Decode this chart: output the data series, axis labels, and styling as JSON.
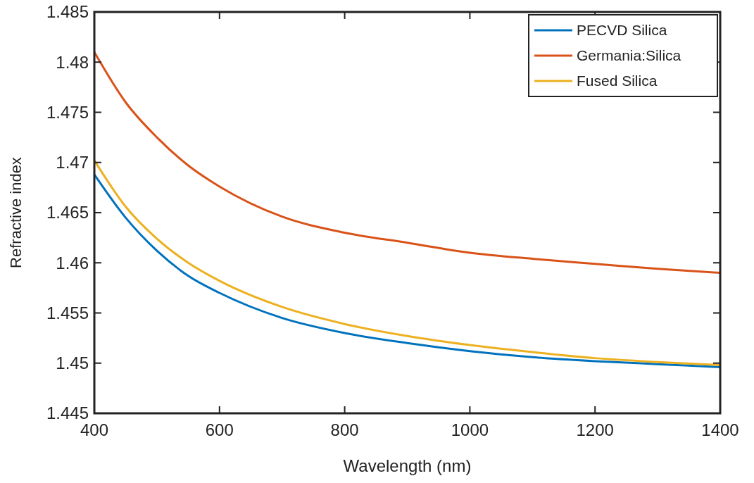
{
  "chart_data": {
    "type": "line",
    "xlabel": "Wavelength (nm)",
    "ylabel": "Refractive index",
    "x": [
      400,
      450,
      500,
      550,
      600,
      700,
      800,
      900,
      1000,
      1100,
      1200,
      1300,
      1400
    ],
    "series": [
      {
        "name": "PECVD Silica",
        "color": "#0072bd",
        "values": [
          1.4688,
          1.4645,
          1.4612,
          1.4587,
          1.457,
          1.4545,
          1.453,
          1.452,
          1.4512,
          1.4506,
          1.4502,
          1.4499,
          1.4496
        ]
      },
      {
        "name": "Germania:Silica",
        "color": "#d95319",
        "values": [
          1.481,
          1.476,
          1.4725,
          1.4697,
          1.4676,
          1.4646,
          1.463,
          1.462,
          1.461,
          1.4604,
          1.4599,
          1.4594,
          1.459
        ]
      },
      {
        "name": "Fused Silica",
        "color": "#edb120",
        "values": [
          1.4702,
          1.4656,
          1.4624,
          1.46,
          1.4582,
          1.4556,
          1.4539,
          1.4527,
          1.4518,
          1.4511,
          1.4505,
          1.4501,
          1.4498
        ]
      }
    ],
    "xlim": [
      400,
      1400
    ],
    "xticks": [
      400,
      600,
      800,
      1000,
      1200,
      1400
    ],
    "ylim": [
      1.445,
      1.485
    ],
    "yticks": [
      1.445,
      1.45,
      1.455,
      1.46,
      1.465,
      1.47,
      1.475,
      1.48,
      1.485
    ],
    "legend": "top right",
    "grid": false,
    "marker": "none",
    "line_style": "solid"
  }
}
